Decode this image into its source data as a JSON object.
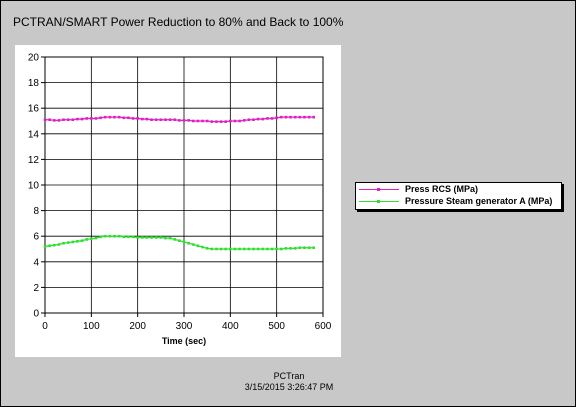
{
  "window": {
    "title": "PCTRAN/SMART Power Reduction to 80% and Back to 100%"
  },
  "footer": {
    "app": "PCTran",
    "timestamp": "3/15/2015 3:26:47 PM"
  },
  "colors": {
    "pressure_rcs": "#e020c0",
    "pressure_sg_a": "#30e030"
  },
  "chart_data": {
    "type": "line",
    "title": "PCTRAN/SMART Power Reduction to 80% and Back to 100%",
    "xlabel": "Time (sec)",
    "ylabel": "",
    "xlim": [
      0,
      600
    ],
    "ylim": [
      0,
      20
    ],
    "xticks": [
      0,
      100,
      200,
      300,
      400,
      500,
      600
    ],
    "yticks": [
      0,
      2,
      4,
      6,
      8,
      10,
      12,
      14,
      16,
      18,
      20
    ],
    "grid": true,
    "legend_position": "right",
    "x": [
      0,
      10,
      20,
      30,
      40,
      50,
      60,
      70,
      80,
      90,
      100,
      110,
      120,
      130,
      140,
      150,
      160,
      170,
      180,
      190,
      200,
      210,
      220,
      230,
      240,
      250,
      260,
      270,
      280,
      290,
      300,
      310,
      320,
      330,
      340,
      350,
      360,
      370,
      380,
      390,
      400,
      410,
      420,
      430,
      440,
      450,
      460,
      470,
      480,
      490,
      500,
      510,
      520,
      530,
      540,
      550,
      560,
      570,
      580
    ],
    "series": [
      {
        "name": "Press RCS (MPa)",
        "values": [
          15.1,
          15.1,
          15.05,
          15.05,
          15.1,
          15.1,
          15.1,
          15.15,
          15.15,
          15.2,
          15.2,
          15.2,
          15.25,
          15.3,
          15.3,
          15.3,
          15.3,
          15.25,
          15.25,
          15.2,
          15.2,
          15.15,
          15.15,
          15.1,
          15.1,
          15.1,
          15.1,
          15.1,
          15.1,
          15.05,
          15.05,
          15.05,
          15.0,
          15.0,
          15.0,
          15.0,
          14.95,
          14.95,
          14.95,
          14.95,
          15.0,
          15.0,
          15.0,
          15.05,
          15.1,
          15.1,
          15.15,
          15.15,
          15.2,
          15.2,
          15.25,
          15.3,
          15.3,
          15.3,
          15.3,
          15.3,
          15.3,
          15.3,
          15.3
        ]
      },
      {
        "name": "Pressure Steam generator A (MPa)",
        "values": [
          5.2,
          5.25,
          5.3,
          5.35,
          5.45,
          5.5,
          5.55,
          5.6,
          5.65,
          5.75,
          5.8,
          5.85,
          5.95,
          6.0,
          6.0,
          6.0,
          6.0,
          5.95,
          5.95,
          5.95,
          5.9,
          5.9,
          5.9,
          5.9,
          5.9,
          5.9,
          5.85,
          5.85,
          5.75,
          5.65,
          5.55,
          5.45,
          5.35,
          5.25,
          5.15,
          5.05,
          5.0,
          5.0,
          5.0,
          5.0,
          5.0,
          5.0,
          5.0,
          5.0,
          5.0,
          5.0,
          5.0,
          5.0,
          5.0,
          5.0,
          5.0,
          5.0,
          5.05,
          5.05,
          5.05,
          5.1,
          5.1,
          5.1,
          5.1
        ]
      }
    ]
  }
}
